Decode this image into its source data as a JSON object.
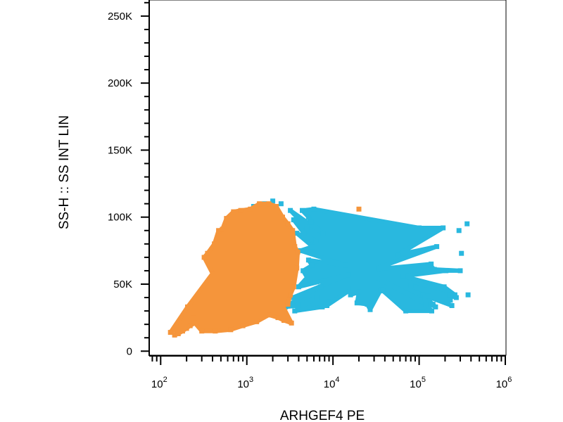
{
  "chart_data": {
    "type": "scatter",
    "title": "",
    "xlabel": "ARHGEF4 PE",
    "ylabel": "SS-H :: SS INT LIN",
    "x_scale": "log",
    "xlim": [
      75,
      1000000
    ],
    "ylim": [
      -3000,
      262000
    ],
    "grid": false,
    "legend": "none",
    "x_ticks": [
      {
        "value": 100,
        "base": "10",
        "exp": "2"
      },
      {
        "value": 1000,
        "base": "10",
        "exp": "3"
      },
      {
        "value": 10000,
        "base": "10",
        "exp": "4"
      },
      {
        "value": 100000,
        "base": "10",
        "exp": "5"
      },
      {
        "value": 1000000,
        "base": "10",
        "exp": "6"
      }
    ],
    "y_ticks": [
      {
        "value": 0,
        "label": "0"
      },
      {
        "value": 50000,
        "label": "50K"
      },
      {
        "value": 100000,
        "label": "100K"
      },
      {
        "value": 150000,
        "label": "150K"
      },
      {
        "value": 200000,
        "label": "200K"
      },
      {
        "value": 250000,
        "label": "250K"
      }
    ],
    "series": [
      {
        "color": "#29b8df",
        "points": [
          [
            1000,
            22000
          ],
          [
            2000,
            28000
          ],
          [
            2800,
            33000
          ],
          [
            3400,
            40000
          ],
          [
            4000,
            48000
          ],
          [
            4500,
            60000
          ],
          [
            4200,
            75000
          ],
          [
            3800,
            88000
          ],
          [
            3500,
            98000
          ],
          [
            3200,
            105000
          ],
          [
            2500,
            110000
          ],
          [
            2000,
            112000
          ],
          [
            1600,
            110000
          ],
          [
            1200,
            108000
          ],
          [
            900,
            104000
          ],
          [
            3600,
            30000
          ],
          [
            4000,
            34000
          ],
          [
            4700,
            42000
          ],
          [
            5000,
            55000
          ],
          [
            5200,
            68000
          ],
          [
            4600,
            88000
          ],
          [
            5000,
            92000
          ],
          [
            5600,
            96000
          ],
          [
            5200,
            100000
          ],
          [
            6000,
            106000
          ],
          [
            4400,
            105000
          ],
          [
            5700,
            64000
          ],
          [
            5800,
            78000
          ],
          [
            6300,
            82000
          ],
          [
            7200,
            48000
          ],
          [
            6500,
            40000
          ],
          [
            7500,
            33000
          ],
          [
            8500,
            34000
          ],
          [
            7600,
            88000
          ],
          [
            9000,
            37000
          ],
          [
            14000,
            64000
          ],
          [
            15000,
            57000
          ],
          [
            16000,
            42000
          ],
          [
            17000,
            47000
          ],
          [
            19000,
            36000
          ],
          [
            20000,
            44000
          ],
          [
            25000,
            35000
          ],
          [
            27000,
            31000
          ],
          [
            30000,
            61000
          ],
          [
            32000,
            55000
          ],
          [
            36000,
            46000
          ],
          [
            38000,
            45000
          ],
          [
            57000,
            72000
          ],
          [
            65000,
            56000
          ],
          [
            70000,
            30000
          ],
          [
            77000,
            49000
          ],
          [
            80000,
            49000
          ],
          [
            100000,
            92000
          ],
          [
            110000,
            42000
          ],
          [
            115000,
            37000
          ],
          [
            118000,
            40000
          ],
          [
            120000,
            35000
          ],
          [
            130000,
            41000
          ],
          [
            135000,
            64000
          ],
          [
            138000,
            65000
          ],
          [
            140000,
            30000
          ],
          [
            145000,
            35000
          ],
          [
            150000,
            61000
          ],
          [
            155000,
            33000
          ],
          [
            160000,
            78000
          ],
          [
            190000,
            92000
          ],
          [
            195000,
            48000
          ],
          [
            205000,
            60000
          ],
          [
            225000,
            42000
          ],
          [
            230000,
            38000
          ],
          [
            240000,
            34000
          ],
          [
            260000,
            42000
          ],
          [
            270000,
            40000
          ],
          [
            290000,
            90000
          ],
          [
            300000,
            60000
          ],
          [
            310000,
            73000
          ],
          [
            360000,
            95000
          ],
          [
            370000,
            42000
          ]
        ]
      },
      {
        "color": "#f5953b",
        "points": [
          [
            130,
            14000
          ],
          [
            145,
            12000
          ],
          [
            160,
            13000
          ],
          [
            180,
            15000
          ],
          [
            200,
            17000
          ],
          [
            220,
            19000
          ],
          [
            240,
            25000
          ],
          [
            205,
            33000
          ],
          [
            320,
            70000
          ],
          [
            350,
            73000
          ],
          [
            420,
            80000
          ],
          [
            470,
            90000
          ],
          [
            520,
            91000
          ],
          [
            580,
            99000
          ],
          [
            700,
            104000
          ],
          [
            850,
            105000
          ],
          [
            1100,
            106000
          ],
          [
            1400,
            110000
          ],
          [
            1800,
            110000
          ],
          [
            2200,
            108000
          ],
          [
            2600,
            100000
          ],
          [
            3000,
            95000
          ],
          [
            3400,
            90000
          ],
          [
            3600,
            78000
          ],
          [
            3800,
            62000
          ],
          [
            3500,
            48000
          ],
          [
            3200,
            42000
          ],
          [
            3000,
            35000
          ],
          [
            2700,
            23000
          ],
          [
            2300,
            25000
          ],
          [
            1800,
            27000
          ],
          [
            1300,
            22000
          ],
          [
            900,
            19000
          ],
          [
            650,
            16000
          ],
          [
            430,
            15000
          ],
          [
            300,
            15000
          ],
          [
            250,
            21000
          ],
          [
            400,
            58000
          ],
          [
            2600,
            34000
          ],
          [
            3300,
            21000
          ],
          [
            3900,
            74000
          ],
          [
            20000,
            106000
          ]
        ]
      }
    ]
  }
}
